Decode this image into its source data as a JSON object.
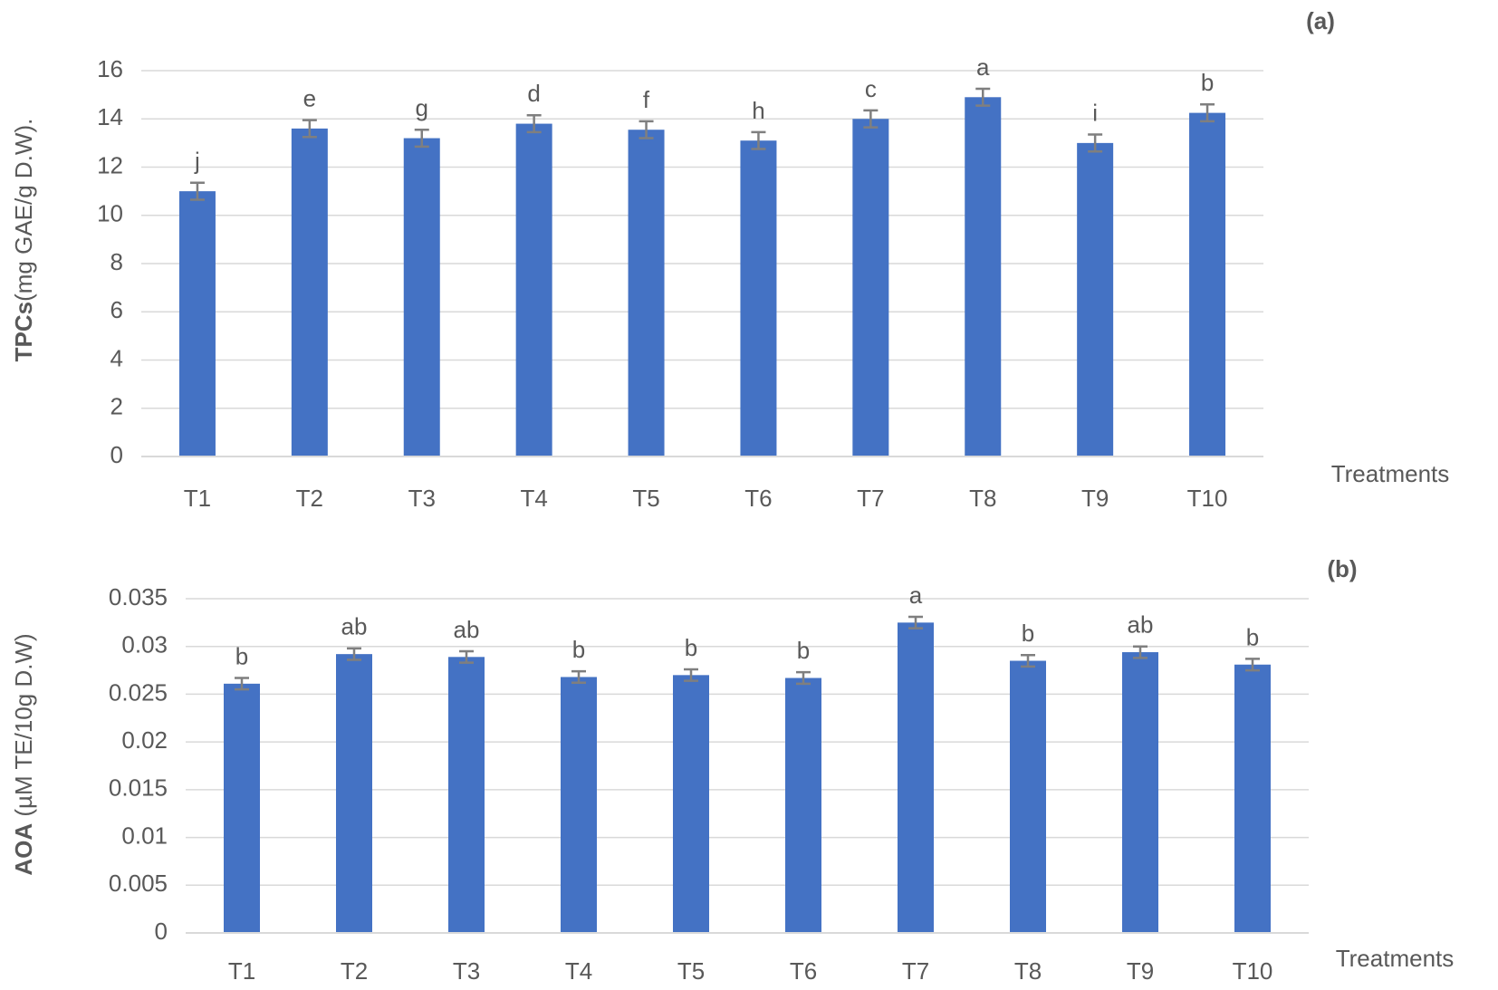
{
  "chart_data": [
    {
      "type": "bar",
      "panel_label": "(a)",
      "ylabel_bold": "TPCs",
      "ylabel": "(mg GAE/g D.W).",
      "xlabel": "Treatments",
      "categories": [
        "T1",
        "T2",
        "T3",
        "T4",
        "T5",
        "T6",
        "T7",
        "T8",
        "T9",
        "T10"
      ],
      "values": [
        11.0,
        13.6,
        13.2,
        13.8,
        13.55,
        13.1,
        14.0,
        14.9,
        13.0,
        14.25
      ],
      "errors": [
        0.35,
        0.35,
        0.35,
        0.35,
        0.35,
        0.35,
        0.35,
        0.35,
        0.35,
        0.35
      ],
      "annotations": [
        "j",
        "e",
        "g",
        "d",
        "f",
        "h",
        "c",
        "a",
        "i",
        "b"
      ],
      "color": "#4472c4",
      "ylim": [
        0,
        16
      ],
      "yticks": [
        0,
        2,
        4,
        6,
        8,
        10,
        12,
        14,
        16
      ],
      "grid": true
    },
    {
      "type": "bar",
      "panel_label": "(b)",
      "ylabel_bold": "AOA",
      "ylabel": " (µM TE/10g D.W)",
      "xlabel": "Treatments",
      "categories": [
        "T1",
        "T2",
        "T3",
        "T4",
        "T5",
        "T6",
        "T7",
        "T8",
        "T9",
        "T10"
      ],
      "values": [
        0.0261,
        0.0292,
        0.0289,
        0.0268,
        0.027,
        0.0267,
        0.0325,
        0.0285,
        0.0294,
        0.0281
      ],
      "errors": [
        0.0006,
        0.0006,
        0.0006,
        0.0006,
        0.0006,
        0.0006,
        0.0006,
        0.0006,
        0.0006,
        0.0006
      ],
      "annotations": [
        "b",
        "ab",
        "ab",
        "b",
        "b",
        "b",
        "a",
        "b",
        "ab",
        "b"
      ],
      "color": "#4472c4",
      "ylim": [
        0,
        0.035
      ],
      "yticks": [
        0,
        0.005,
        0.01,
        0.015,
        0.02,
        0.025,
        0.03,
        0.035
      ],
      "grid": true
    }
  ]
}
